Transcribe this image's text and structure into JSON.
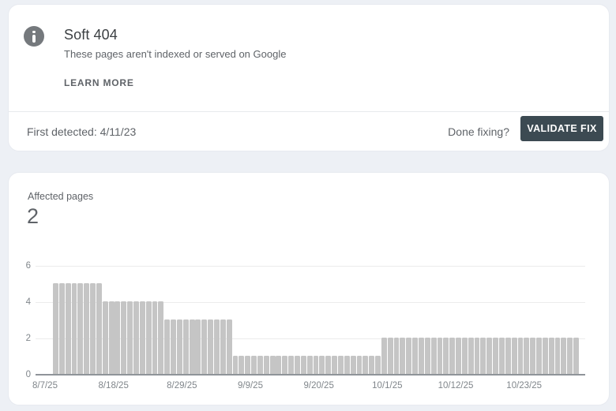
{
  "issue_card": {
    "title": "Soft 404",
    "description": "These pages aren't indexed or served on Google",
    "learn_more_label": "LEARN MORE",
    "first_detected": "First detected: 4/11/23",
    "done_fixing_label": "Done fixing?",
    "validate_fix_label": "VALIDATE FIX",
    "severity_icon": "info-icon"
  },
  "metric_card": {
    "label": "Affected pages",
    "value": "2"
  },
  "colors": {
    "page_bg": "#edf0f5",
    "card_bg": "#ffffff",
    "validate_button_bg": "#3c4a52",
    "bar_fill": "#c5c5c5",
    "info_icon_bg": "#75797d",
    "text_primary": "#3c4043",
    "text_secondary": "#5f6368",
    "axis_label": "#80868b",
    "gridline": "#ececec",
    "axis_line": "#8f9499"
  },
  "chart_data": {
    "type": "bar",
    "title": "Affected pages",
    "xlabel": "",
    "ylabel": "",
    "ylim": [
      0,
      6
    ],
    "y_ticks": [
      0,
      2,
      4,
      6
    ],
    "x_tick_labels": [
      "8/7/25",
      "8/18/25",
      "8/29/25",
      "9/9/25",
      "9/20/25",
      "10/1/25",
      "10/12/25",
      "10/23/25"
    ],
    "grid": true,
    "legend": false,
    "bar_unit": "one bar per day",
    "bar_count": 85,
    "segments": [
      {
        "value": 5,
        "count": 8
      },
      {
        "value": 4,
        "count": 10
      },
      {
        "value": 3,
        "count": 11
      },
      {
        "value": 1,
        "count": 24
      },
      {
        "value": 2,
        "count": 32
      }
    ]
  }
}
